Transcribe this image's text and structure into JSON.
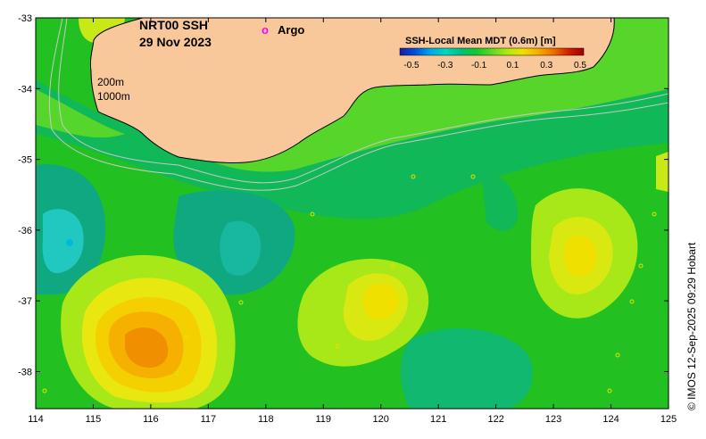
{
  "title": {
    "line1": "NRT00 SSH",
    "line2": "29 Nov 2023"
  },
  "legend": {
    "argo_symbol": "o",
    "argo_label": "Argo",
    "argo_color": "#ff00ff"
  },
  "isobaths": {
    "label_200": "200m",
    "label_1000": "1000m"
  },
  "colorbar": {
    "title": "SSH-Local Mean MDT (0.6m) [m]",
    "ticks": [
      "-0.5",
      "-0.3",
      "-0.1",
      "0.1",
      "0.3",
      "0.5"
    ],
    "colors": [
      "#1a1aa0",
      "#0050e0",
      "#00a8e8",
      "#00d8c0",
      "#00c080",
      "#10c830",
      "#60d820",
      "#b0e810",
      "#f0e000",
      "#f5b000",
      "#f07000",
      "#d02000",
      "#a00000"
    ]
  },
  "credit": "© IMOS 12-Sep-2025 09:29 Hobart",
  "axes": {
    "x_labels": [
      "114",
      "115",
      "116",
      "117",
      "118",
      "119",
      "120",
      "121",
      "122",
      "123",
      "124",
      "125"
    ],
    "y_labels": [
      "-33",
      "-34",
      "-35",
      "-36",
      "-37",
      "-38"
    ]
  },
  "colors": {
    "land": "#f8c89a",
    "background_green": "#22c020",
    "shelf_green": "#56d62a",
    "mid_green": "#10b858"
  }
}
